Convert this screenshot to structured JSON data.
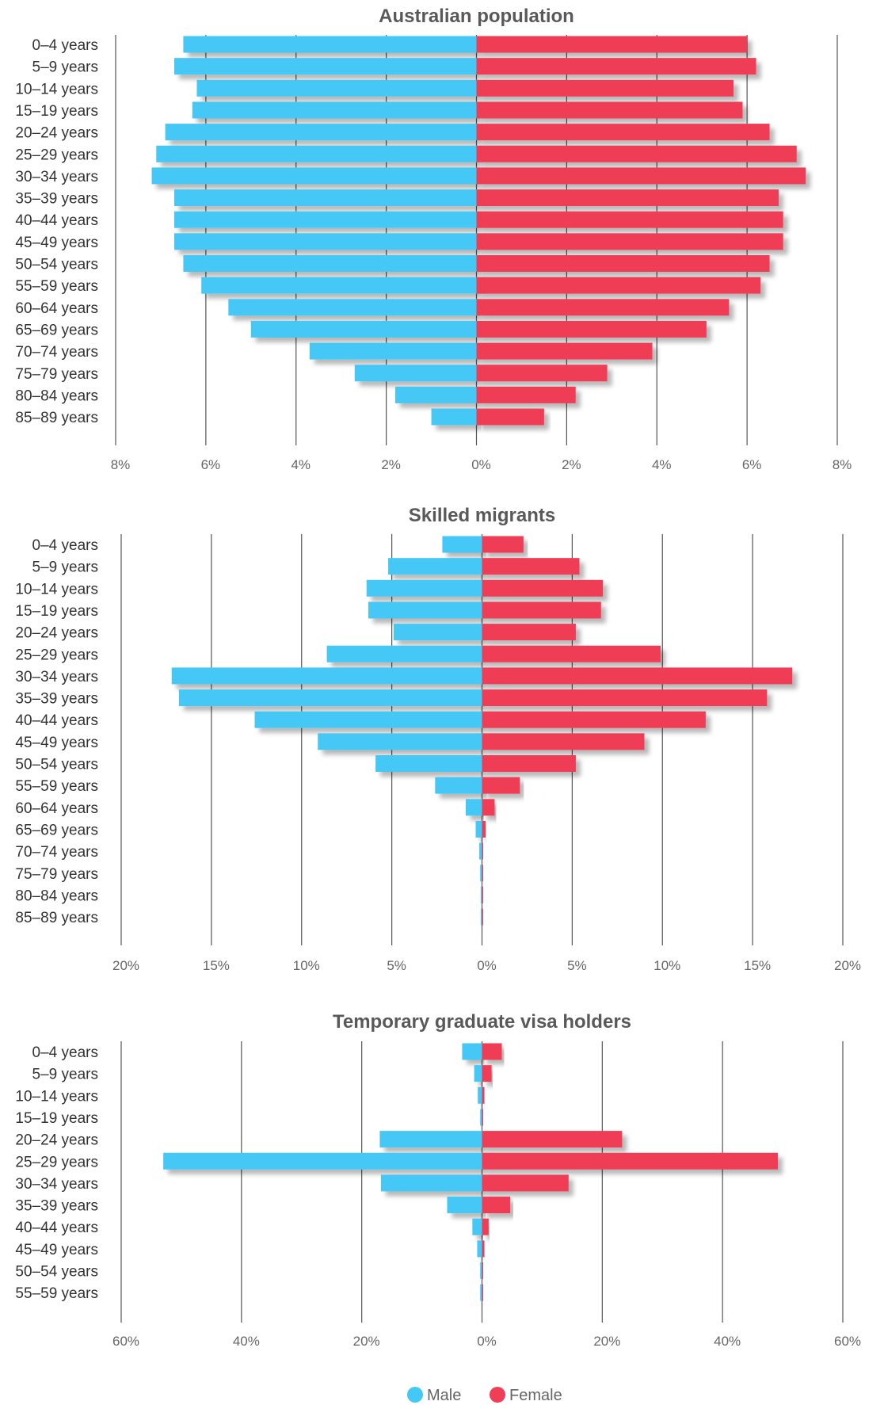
{
  "colors": {
    "male": "#44C8F5",
    "female": "#EF3E56",
    "grid": "#555555",
    "axis_text": "#666666",
    "title_text": "#595959",
    "label_text": "#333333"
  },
  "legend": {
    "male_label": "Male",
    "female_label": "Female"
  },
  "chart_data": [
    {
      "type": "bar",
      "title": "Australian population",
      "categories": [
        "0–4 years",
        "5–9 years",
        "10–14 years",
        "15–19 years",
        "20–24 years",
        "25–29 years",
        "30–34 years",
        "35–39 years",
        "40–44 years",
        "45–49 years",
        "50–54 years",
        "55–59 years",
        "60–64 years",
        "65–69 years",
        "70–74 years",
        "75–79 years",
        "80–84 years",
        "85–89 years"
      ],
      "series": [
        {
          "name": "Male",
          "values": [
            6.5,
            6.7,
            6.2,
            6.3,
            6.9,
            7.1,
            7.2,
            6.7,
            6.7,
            6.7,
            6.5,
            6.1,
            5.5,
            5.0,
            3.7,
            2.7,
            1.8,
            1.0
          ]
        },
        {
          "name": "Female",
          "values": [
            6.0,
            6.2,
            5.7,
            5.9,
            6.5,
            7.1,
            7.3,
            6.7,
            6.8,
            6.8,
            6.5,
            6.3,
            5.6,
            5.1,
            3.9,
            2.9,
            2.2,
            1.5
          ]
        }
      ],
      "xlim": [
        -8,
        8
      ],
      "xticks": [
        "8%",
        "6%",
        "4%",
        "2%",
        "0%",
        "2%",
        "4%",
        "6%",
        "8%"
      ],
      "grid": true
    },
    {
      "type": "bar",
      "title": "Skilled migrants",
      "categories": [
        "0–4 years",
        "5–9 years",
        "10–14 years",
        "15–19 years",
        "20–24 years",
        "25–29 years",
        "30–34 years",
        "35–39 years",
        "40–44 years",
        "45–49 years",
        "50–54 years",
        "55–59 years",
        "60–64 years",
        "65–69 years",
        "70–74 years",
        "75–79 years",
        "80–84 years",
        "85–89 years"
      ],
      "series": [
        {
          "name": "Male",
          "values": [
            2.2,
            5.2,
            6.4,
            6.3,
            4.9,
            8.6,
            17.2,
            16.8,
            12.6,
            9.1,
            5.9,
            2.6,
            0.9,
            0.35,
            0.15,
            0.1,
            0.05,
            0.05
          ]
        },
        {
          "name": "Female",
          "values": [
            2.3,
            5.4,
            6.7,
            6.6,
            5.2,
            9.9,
            17.2,
            15.8,
            12.4,
            9.0,
            5.2,
            2.1,
            0.7,
            0.2,
            0.05,
            0.05,
            0.05,
            0.05
          ]
        }
      ],
      "xlim": [
        -20,
        20
      ],
      "xticks": [
        "20%",
        "15%",
        "10%",
        "5%",
        "0%",
        "5%",
        "10%",
        "15%",
        "20%"
      ],
      "grid": true
    },
    {
      "type": "bar",
      "title": "Temporary graduate visa holders",
      "categories": [
        "0–4 years",
        "5–9 years",
        "10–14 years",
        "15–19 years",
        "20–24 years",
        "25–29 years",
        "30–34 years",
        "35–39 years",
        "40–44 years",
        "45–49 years",
        "50–54 years",
        "55–59 years"
      ],
      "series": [
        {
          "name": "Male",
          "values": [
            3.3,
            1.3,
            0.7,
            0.3,
            17.0,
            53.0,
            16.8,
            5.8,
            1.6,
            0.8,
            0.3,
            0.3
          ]
        },
        {
          "name": "Female",
          "values": [
            3.3,
            1.6,
            0.4,
            0.1,
            23.3,
            49.2,
            14.4,
            4.7,
            1.1,
            0.4,
            0.1,
            0.1
          ]
        }
      ],
      "xlim": [
        -60,
        60
      ],
      "xticks": [
        "60%",
        "40%",
        "20%",
        "0%",
        "20%",
        "40%",
        "60%"
      ],
      "grid": true
    }
  ]
}
